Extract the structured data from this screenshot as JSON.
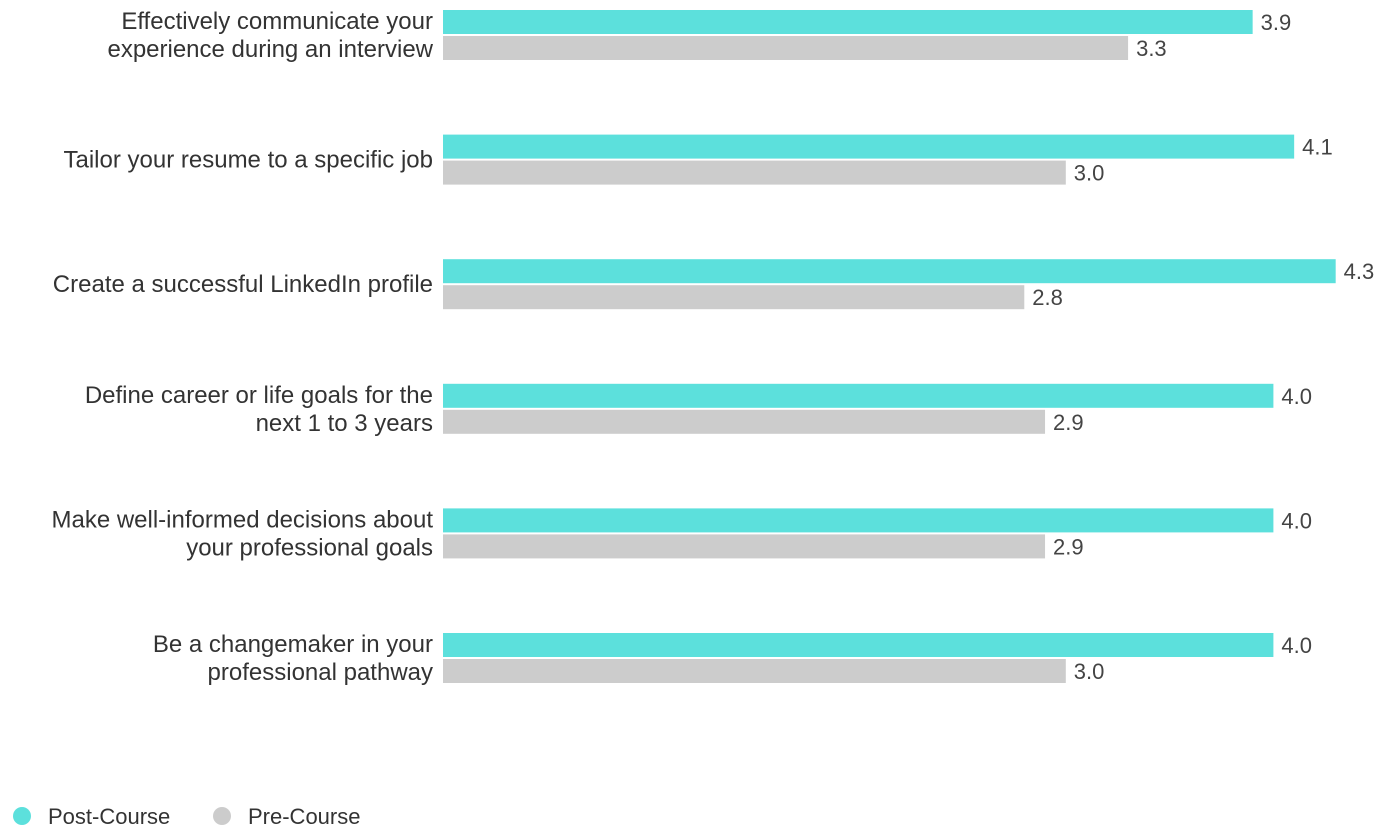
{
  "chart_data": {
    "type": "bar",
    "orientation": "horizontal",
    "categories": [
      [
        "Effectively communicate your",
        "experience during an interview"
      ],
      [
        "Tailor your resume to a specific job"
      ],
      [
        "Create a successful LinkedIn profile"
      ],
      [
        "Define career or life goals for the",
        "next 1 to 3 years"
      ],
      [
        "Make well-informed decisions about",
        "your professional goals"
      ],
      [
        "Be a changemaker in your",
        "professional pathway"
      ]
    ],
    "series": [
      {
        "name": "Post-Course",
        "color": "#5ce0dc",
        "values": [
          3.9,
          4.1,
          4.3,
          4.0,
          4.0,
          4.0
        ]
      },
      {
        "name": "Pre-Course",
        "color": "#cccccc",
        "values": [
          3.3,
          3.0,
          2.8,
          2.9,
          2.9,
          3.0
        ]
      }
    ],
    "title": "",
    "xlabel": "",
    "ylabel": "",
    "xlim": [
      0,
      4.5
    ],
    "grid": false,
    "legend_position": "bottom-left",
    "value_labels": [
      "3.9",
      "3.3",
      "4.1",
      "3.0",
      "4.3",
      "2.8",
      "4.0",
      "2.9",
      "4.0",
      "2.9",
      "4.0",
      "3.0"
    ]
  }
}
